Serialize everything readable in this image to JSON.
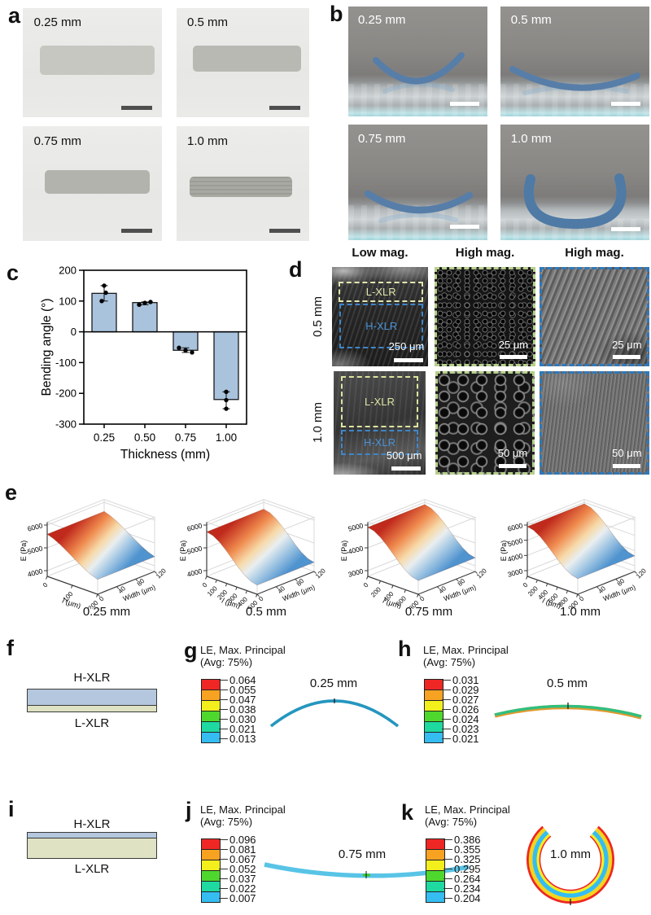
{
  "panel_a": {
    "letter": "a",
    "images": [
      {
        "label": "0.25 mm"
      },
      {
        "label": "0.5 mm"
      },
      {
        "label": "0.75 mm"
      },
      {
        "label": "1.0 mm"
      }
    ]
  },
  "panel_b": {
    "letter": "b",
    "images": [
      {
        "label": "0.25 mm"
      },
      {
        "label": "0.5 mm"
      },
      {
        "label": "0.75 mm"
      },
      {
        "label": "1.0 mm"
      }
    ]
  },
  "panel_c": {
    "letter": "c"
  },
  "panel_d": {
    "letter": "d",
    "column_headers": [
      "Low mag.",
      "High mag.",
      "High mag."
    ],
    "rows": [
      {
        "label": "0.5 mm",
        "region_labels": [
          "L-XLR",
          "H-XLR"
        ],
        "scale_bars": [
          "250 μm",
          "25 μm",
          "25 μm"
        ]
      },
      {
        "label": "1.0 mm",
        "region_labels": [
          "L-XLR",
          "H-XLR"
        ],
        "scale_bars": [
          "500 μm",
          "50 μm",
          "50 μm"
        ]
      }
    ]
  },
  "panel_e": {
    "letter": "e"
  },
  "panel_f": {
    "letter": "f",
    "top_label": "H-XLR",
    "bottom_label": "L-XLR"
  },
  "panel_g": {
    "letter": "g",
    "legend_title": "LE, Max. Principal",
    "legend_subtitle": "(Avg: 75%)",
    "legend_values": [
      "0.064",
      "0.055",
      "0.047",
      "0.038",
      "0.030",
      "0.021",
      "0.013"
    ],
    "caption": "0.25 mm"
  },
  "panel_h": {
    "letter": "h",
    "legend_title": "LE, Max. Principal",
    "legend_subtitle": "(Avg: 75%)",
    "legend_values": [
      "0.031",
      "0.029",
      "0.027",
      "0.026",
      "0.024",
      "0.023",
      "0.021"
    ],
    "caption": "0.5 mm"
  },
  "panel_i": {
    "letter": "i",
    "top_label": "H-XLR",
    "bottom_label": "L-XLR"
  },
  "panel_j": {
    "letter": "j",
    "legend_title": "LE, Max. Principal",
    "legend_subtitle": "(Avg: 75%)",
    "legend_values": [
      "0.096",
      "0.081",
      "0.067",
      "0.052",
      "0.037",
      "0.022",
      "0.007"
    ],
    "caption": "0.75 mm"
  },
  "panel_k": {
    "letter": "k",
    "legend_title": "LE, Max. Principal",
    "legend_subtitle": "(Avg: 75%)",
    "legend_values": [
      "0.386",
      "0.355",
      "0.325",
      "0.295",
      "0.264",
      "0.234",
      "0.204"
    ],
    "caption": "1.0 mm"
  },
  "colors": {
    "legend_scale": [
      "#ee2724",
      "#f8a222",
      "#f2ef1c",
      "#4ed82e",
      "#1ed9a0",
      "#35bdf2"
    ],
    "bar_fill": "#a9c3dd",
    "hxlr_blue": "#b4c7de",
    "lxlr_green": "#dfe2c3"
  },
  "chart_data": [
    {
      "type": "bar",
      "panel": "c",
      "title": "",
      "xlabel": "Thickness (mm)",
      "ylabel": "Bending angle (°)",
      "categories": [
        "0.25",
        "0.50",
        "0.75",
        "1.00"
      ],
      "values": [
        125,
        95,
        -60,
        -220
      ],
      "points": [
        [
          100,
          127,
          150
        ],
        [
          88,
          94,
          97
        ],
        [
          -52,
          -60,
          -67
        ],
        [
          -195,
          -222,
          -250
        ]
      ],
      "ylim": [
        -300,
        200
      ],
      "yticks": [
        200,
        100,
        0,
        -100,
        -200,
        -300
      ],
      "grid": false,
      "bar_color": "#a9c3dd"
    },
    {
      "type": "surface",
      "panel": "e",
      "plots": [
        {
          "caption": "0.25 mm",
          "zlabel": "E (Pa)",
          "zticks": [
            "4000",
            "5000",
            "6000"
          ],
          "xlabel": "l (μm)",
          "xticks": [
            "0",
            "100",
            "200"
          ],
          "ylabel": "Width (μm)",
          "yticks": [
            "0",
            "40",
            "80",
            "120"
          ],
          "z_high": 5600,
          "z_low": 4400,
          "sig": 0
        },
        {
          "caption": "0.5 mm",
          "zlabel": "E (Pa)",
          "zticks": [
            "4000",
            "5000",
            "6000"
          ],
          "xlabel": "l (μm)",
          "xticks": [
            "0",
            "100",
            "200",
            "300",
            "400",
            "500"
          ],
          "ylabel": "Width (μm)",
          "yticks": [
            "0",
            "40",
            "80",
            "120"
          ],
          "z_high": 5700,
          "z_low": 4150,
          "sig": 1
        },
        {
          "caption": "0.75 mm",
          "zlabel": "E (Pa)",
          "zticks": [
            "3000",
            "4000",
            "5000"
          ],
          "xlabel": "l (μm)",
          "xticks": [
            "0",
            "200",
            "400",
            "600",
            "800"
          ],
          "ylabel": "Width (μm)",
          "yticks": [
            "0",
            "40",
            "80",
            "120"
          ],
          "z_high": 4900,
          "z_low": 3350,
          "sig": 1
        },
        {
          "caption": "1.0 mm",
          "zlabel": "E (Pa)",
          "zticks": [
            "3000",
            "4000",
            "5000",
            "6000"
          ],
          "xlabel": "l (μm)",
          "xticks": [
            "0",
            "200",
            "400",
            "600",
            "800",
            "1000"
          ],
          "ylabel": "Width (μm)",
          "yticks": [
            "0",
            "40",
            "80",
            "120"
          ],
          "z_high": 5900,
          "z_low": 3650,
          "sig": 1
        }
      ]
    }
  ]
}
